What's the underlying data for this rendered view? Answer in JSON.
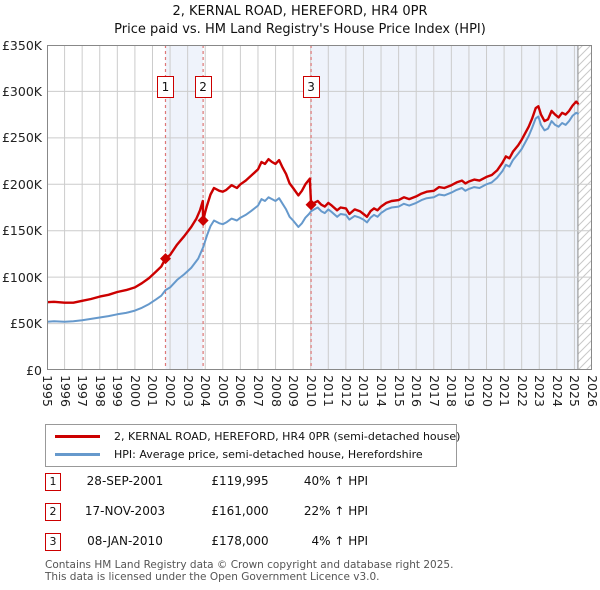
{
  "header": {
    "title": "2, KERNAL ROAD, HEREFORD, HR4 0PR",
    "subtitle": "Price paid vs. HM Land Registry's House Price Index (HPI)"
  },
  "chart_data": {
    "type": "line",
    "units": "GBP_thousands",
    "x_axis": {
      "start_year": 1995,
      "end_year": 2026,
      "tick_labels": [
        "1995",
        "1996",
        "1997",
        "1998",
        "1999",
        "2000",
        "2001",
        "2002",
        "2003",
        "2004",
        "2005",
        "2006",
        "2007",
        "2008",
        "2009",
        "2010",
        "2011",
        "2012",
        "2013",
        "2014",
        "2015",
        "2016",
        "2017",
        "2018",
        "2019",
        "2020",
        "2021",
        "2022",
        "2023",
        "2024",
        "2025",
        "2026"
      ]
    },
    "y_axis": {
      "min": 0,
      "max": 350,
      "tick_values": [
        0,
        50,
        100,
        150,
        200,
        250,
        300,
        350
      ],
      "tick_labels": [
        "£0",
        "£50K",
        "£100K",
        "£150K",
        "£200K",
        "£250K",
        "£300K",
        "£350K"
      ]
    },
    "series": [
      {
        "name": "2, KERNAL ROAD, HEREFORD, HR4 0PR (semi-detached house)",
        "color": "#cc0000",
        "width": 2.4,
        "points": [
          [
            1995.0,
            73
          ],
          [
            1995.4,
            73.5
          ],
          [
            1996.0,
            72.5
          ],
          [
            1996.5,
            72.5
          ],
          [
            1997.0,
            74.5
          ],
          [
            1997.5,
            76.5
          ],
          [
            1998.0,
            79
          ],
          [
            1998.5,
            81
          ],
          [
            1999.0,
            84
          ],
          [
            1999.5,
            86
          ],
          [
            2000.0,
            89
          ],
          [
            2000.4,
            93.5
          ],
          [
            2000.8,
            99
          ],
          [
            2001.2,
            106
          ],
          [
            2001.5,
            111.5
          ],
          [
            2001.74,
            120
          ],
          [
            2002.0,
            124
          ],
          [
            2002.4,
            135
          ],
          [
            2002.8,
            144
          ],
          [
            2003.2,
            154
          ],
          [
            2003.5,
            163
          ],
          [
            2003.7,
            172
          ],
          [
            2003.86,
            182
          ],
          [
            2003.88,
            161
          ],
          [
            2004.0,
            170
          ],
          [
            2004.1,
            177
          ],
          [
            2004.3,
            189
          ],
          [
            2004.5,
            196
          ],
          [
            2004.8,
            193
          ],
          [
            2005.0,
            192
          ],
          [
            2005.2,
            194
          ],
          [
            2005.5,
            199
          ],
          [
            2005.8,
            196
          ],
          [
            2006.0,
            200
          ],
          [
            2006.3,
            204
          ],
          [
            2006.6,
            209
          ],
          [
            2007.0,
            216
          ],
          [
            2007.2,
            224
          ],
          [
            2007.4,
            222
          ],
          [
            2007.6,
            227
          ],
          [
            2007.8,
            224
          ],
          [
            2008.0,
            222
          ],
          [
            2008.2,
            226
          ],
          [
            2008.4,
            218
          ],
          [
            2008.6,
            211
          ],
          [
            2008.8,
            201
          ],
          [
            2009.0,
            196
          ],
          [
            2009.3,
            188
          ],
          [
            2009.5,
            193
          ],
          [
            2009.7,
            200
          ],
          [
            2009.95,
            206
          ],
          [
            2010.02,
            178
          ],
          [
            2010.2,
            180
          ],
          [
            2010.4,
            182
          ],
          [
            2010.6,
            178
          ],
          [
            2010.8,
            176
          ],
          [
            2011.0,
            180
          ],
          [
            2011.2,
            177
          ],
          [
            2011.5,
            172
          ],
          [
            2011.7,
            175
          ],
          [
            2012.0,
            174
          ],
          [
            2012.2,
            168
          ],
          [
            2012.5,
            173
          ],
          [
            2012.8,
            171
          ],
          [
            2013.0,
            168
          ],
          [
            2013.2,
            165
          ],
          [
            2013.4,
            171
          ],
          [
            2013.6,
            174
          ],
          [
            2013.8,
            172
          ],
          [
            2014.0,
            176
          ],
          [
            2014.3,
            180
          ],
          [
            2014.6,
            182
          ],
          [
            2015.0,
            183
          ],
          [
            2015.3,
            186
          ],
          [
            2015.6,
            184
          ],
          [
            2016.0,
            187
          ],
          [
            2016.3,
            190
          ],
          [
            2016.6,
            192
          ],
          [
            2017.0,
            193
          ],
          [
            2017.3,
            197
          ],
          [
            2017.6,
            196
          ],
          [
            2018.0,
            199
          ],
          [
            2018.3,
            202
          ],
          [
            2018.6,
            204
          ],
          [
            2018.8,
            201
          ],
          [
            2019.0,
            203
          ],
          [
            2019.3,
            205
          ],
          [
            2019.6,
            204
          ],
          [
            2020.0,
            208
          ],
          [
            2020.3,
            210
          ],
          [
            2020.6,
            215
          ],
          [
            2020.9,
            223
          ],
          [
            2021.1,
            230
          ],
          [
            2021.3,
            228
          ],
          [
            2021.5,
            235
          ],
          [
            2021.8,
            242
          ],
          [
            2022.0,
            248
          ],
          [
            2022.2,
            255
          ],
          [
            2022.4,
            262
          ],
          [
            2022.6,
            271
          ],
          [
            2022.8,
            282
          ],
          [
            2022.95,
            284
          ],
          [
            2023.1,
            275
          ],
          [
            2023.3,
            268
          ],
          [
            2023.5,
            270
          ],
          [
            2023.7,
            279
          ],
          [
            2023.9,
            275
          ],
          [
            2024.1,
            272
          ],
          [
            2024.3,
            277
          ],
          [
            2024.5,
            275
          ],
          [
            2024.7,
            279
          ],
          [
            2024.9,
            285
          ],
          [
            2025.1,
            289
          ],
          [
            2025.2,
            287
          ]
        ]
      },
      {
        "name": "HPI: Average price, semi-detached house, Herefordshire",
        "color": "#6699cc",
        "width": 2,
        "points": [
          [
            1995.0,
            52
          ],
          [
            1995.4,
            52.5
          ],
          [
            1996.0,
            52
          ],
          [
            1996.5,
            52.5
          ],
          [
            1997.0,
            53.5
          ],
          [
            1997.5,
            55
          ],
          [
            1998.0,
            56.5
          ],
          [
            1998.5,
            58
          ],
          [
            1999.0,
            60
          ],
          [
            1999.5,
            61.5
          ],
          [
            2000.0,
            64
          ],
          [
            2000.4,
            67
          ],
          [
            2000.8,
            71
          ],
          [
            2001.2,
            76
          ],
          [
            2001.5,
            80
          ],
          [
            2001.74,
            86
          ],
          [
            2002.0,
            89
          ],
          [
            2002.4,
            97
          ],
          [
            2002.8,
            103
          ],
          [
            2003.2,
            110
          ],
          [
            2003.6,
            120
          ],
          [
            2003.88,
            132
          ],
          [
            2004.1,
            145
          ],
          [
            2004.3,
            155
          ],
          [
            2004.5,
            161
          ],
          [
            2004.8,
            158
          ],
          [
            2005.0,
            157
          ],
          [
            2005.2,
            159
          ],
          [
            2005.5,
            163
          ],
          [
            2005.8,
            161
          ],
          [
            2006.0,
            164
          ],
          [
            2006.3,
            167
          ],
          [
            2006.6,
            171
          ],
          [
            2007.0,
            177
          ],
          [
            2007.2,
            184
          ],
          [
            2007.4,
            182
          ],
          [
            2007.6,
            186
          ],
          [
            2007.8,
            184
          ],
          [
            2008.0,
            182
          ],
          [
            2008.2,
            185
          ],
          [
            2008.4,
            179
          ],
          [
            2008.6,
            173
          ],
          [
            2008.8,
            165
          ],
          [
            2009.0,
            161
          ],
          [
            2009.3,
            154
          ],
          [
            2009.5,
            158
          ],
          [
            2009.7,
            164
          ],
          [
            2009.9,
            168
          ],
          [
            2010.02,
            171
          ],
          [
            2010.2,
            173
          ],
          [
            2010.4,
            175
          ],
          [
            2010.6,
            171
          ],
          [
            2010.8,
            169
          ],
          [
            2011.0,
            173
          ],
          [
            2011.2,
            170
          ],
          [
            2011.5,
            165
          ],
          [
            2011.7,
            168
          ],
          [
            2012.0,
            167
          ],
          [
            2012.2,
            162
          ],
          [
            2012.5,
            166
          ],
          [
            2012.8,
            164
          ],
          [
            2013.0,
            162
          ],
          [
            2013.2,
            159
          ],
          [
            2013.4,
            164
          ],
          [
            2013.6,
            167
          ],
          [
            2013.8,
            165
          ],
          [
            2014.0,
            169
          ],
          [
            2014.3,
            173
          ],
          [
            2014.6,
            175
          ],
          [
            2015.0,
            176
          ],
          [
            2015.3,
            179
          ],
          [
            2015.6,
            177
          ],
          [
            2016.0,
            180
          ],
          [
            2016.3,
            183
          ],
          [
            2016.6,
            185
          ],
          [
            2017.0,
            186
          ],
          [
            2017.3,
            189
          ],
          [
            2017.6,
            188
          ],
          [
            2018.0,
            191
          ],
          [
            2018.3,
            194
          ],
          [
            2018.6,
            196
          ],
          [
            2018.8,
            193
          ],
          [
            2019.0,
            195
          ],
          [
            2019.3,
            197
          ],
          [
            2019.6,
            196
          ],
          [
            2020.0,
            200
          ],
          [
            2020.3,
            202
          ],
          [
            2020.6,
            207
          ],
          [
            2020.9,
            214
          ],
          [
            2021.1,
            221
          ],
          [
            2021.3,
            219
          ],
          [
            2021.5,
            226
          ],
          [
            2021.8,
            233
          ],
          [
            2022.0,
            238
          ],
          [
            2022.2,
            245
          ],
          [
            2022.4,
            252
          ],
          [
            2022.6,
            261
          ],
          [
            2022.8,
            271
          ],
          [
            2022.95,
            273
          ],
          [
            2023.1,
            264
          ],
          [
            2023.3,
            258
          ],
          [
            2023.5,
            260
          ],
          [
            2023.7,
            268
          ],
          [
            2023.9,
            264
          ],
          [
            2024.1,
            262
          ],
          [
            2024.3,
            266
          ],
          [
            2024.5,
            264
          ],
          [
            2024.7,
            268
          ],
          [
            2024.9,
            274
          ],
          [
            2025.1,
            277
          ],
          [
            2025.2,
            276
          ]
        ]
      }
    ],
    "transactions": [
      {
        "label": "1",
        "date": "28-SEP-2001",
        "price": "£119,995",
        "price_k": 119.995,
        "year": 2001.74,
        "vs_hpi": "40% ↑ HPI"
      },
      {
        "label": "2",
        "date": "17-NOV-2003",
        "price": "£161,000",
        "price_k": 161.0,
        "year": 2003.88,
        "vs_hpi": "22% ↑ HPI"
      },
      {
        "label": "3",
        "date": "08-JAN-2010",
        "price": "£178,000",
        "price_k": 178.0,
        "year": 2010.02,
        "vs_hpi": "4% ↑ HPI"
      }
    ],
    "shaded_bands": [
      [
        2001.74,
        2003.88
      ],
      [
        2010.02,
        2025.2
      ]
    ],
    "hatch_from": 2025.2,
    "grid": true,
    "colors": {
      "band": "#eff3fb",
      "grid": "#cccccc",
      "event_line": "#dd7777",
      "sale_marker": "#cc0000",
      "plot_border": "#888888",
      "hatch_line": "#c8c8c8"
    }
  },
  "legend": {
    "items": [
      {
        "label": "2, KERNAL ROAD, HEREFORD, HR4 0PR (semi-detached house)",
        "color": "#cc0000"
      },
      {
        "label": "HPI: Average price, semi-detached house, Herefordshire",
        "color": "#6699cc"
      }
    ]
  },
  "footer": {
    "line1": "Contains HM Land Registry data © Crown copyright and database right 2025.",
    "line2": "This data is licensed under the Open Government Licence v3.0."
  }
}
